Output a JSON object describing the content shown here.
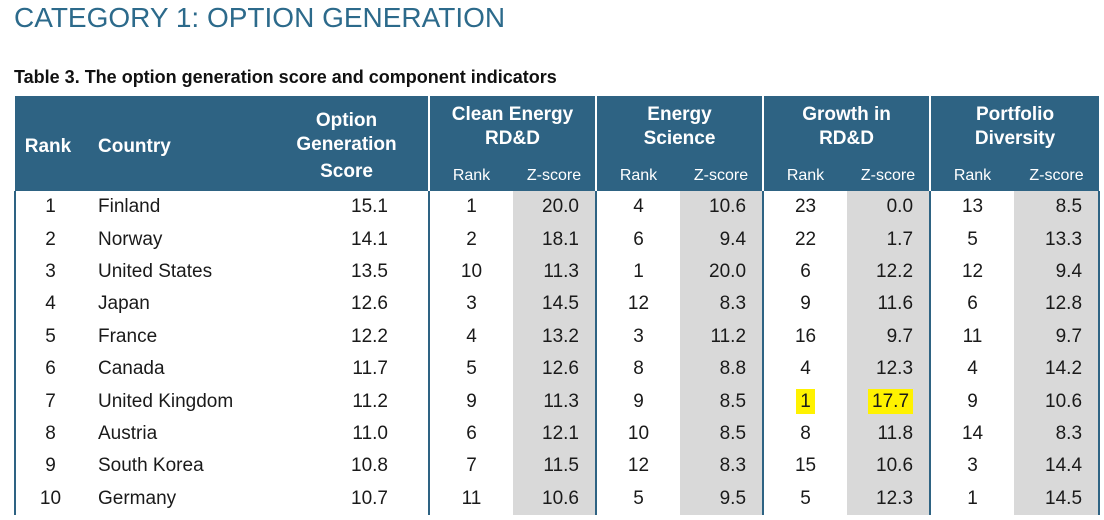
{
  "heading": "CATEGORY 1: OPTION GENERATION",
  "caption": "Table 3. The option generation score and component indicators",
  "columns": {
    "rank": "Rank",
    "country": "Country",
    "score_line1": "Option",
    "score_line2": "Generation",
    "score_line3": "Score",
    "groups": [
      {
        "line1": "Clean Energy",
        "line2": "RD&D"
      },
      {
        "line1": "Energy",
        "line2": "Science"
      },
      {
        "line1": "Growth in",
        "line2": "RD&D"
      },
      {
        "line1": "Portfolio",
        "line2": "Diversity"
      }
    ],
    "sub_rank": "Rank",
    "sub_z": "Z-score"
  },
  "highlight_color": "#fff200",
  "header_color": "#2e6383",
  "rows": [
    {
      "rank": "1",
      "country": "Finland",
      "score": "15.1",
      "ce_rank": "1",
      "ce_z": "20.0",
      "es_rank": "4",
      "es_z": "10.6",
      "gr_rank": "23",
      "gr_z": "0.0",
      "pd_rank": "13",
      "pd_z": "8.5"
    },
    {
      "rank": "2",
      "country": "Norway",
      "score": "14.1",
      "ce_rank": "2",
      "ce_z": "18.1",
      "es_rank": "6",
      "es_z": "9.4",
      "gr_rank": "22",
      "gr_z": "1.7",
      "pd_rank": "5",
      "pd_z": "13.3"
    },
    {
      "rank": "3",
      "country": "United States",
      "score": "13.5",
      "ce_rank": "10",
      "ce_z": "11.3",
      "es_rank": "1",
      "es_z": "20.0",
      "gr_rank": "6",
      "gr_z": "12.2",
      "pd_rank": "12",
      "pd_z": "9.4"
    },
    {
      "rank": "4",
      "country": "Japan",
      "score": "12.6",
      "ce_rank": "3",
      "ce_z": "14.5",
      "es_rank": "12",
      "es_z": "8.3",
      "gr_rank": "9",
      "gr_z": "11.6",
      "pd_rank": "6",
      "pd_z": "12.8"
    },
    {
      "rank": "5",
      "country": "France",
      "score": "12.2",
      "ce_rank": "4",
      "ce_z": "13.2",
      "es_rank": "3",
      "es_z": "11.2",
      "gr_rank": "16",
      "gr_z": "9.7",
      "pd_rank": "11",
      "pd_z": "9.7"
    },
    {
      "rank": "6",
      "country": "Canada",
      "score": "11.7",
      "ce_rank": "5",
      "ce_z": "12.6",
      "es_rank": "8",
      "es_z": "8.8",
      "gr_rank": "4",
      "gr_z": "12.3",
      "pd_rank": "4",
      "pd_z": "14.2"
    },
    {
      "rank": "7",
      "country": "United Kingdom",
      "score": "11.2",
      "ce_rank": "9",
      "ce_z": "11.3",
      "es_rank": "9",
      "es_z": "8.5",
      "gr_rank": "1",
      "gr_z": "17.7",
      "pd_rank": "9",
      "pd_z": "10.6"
    },
    {
      "rank": "8",
      "country": "Austria",
      "score": "11.0",
      "ce_rank": "6",
      "ce_z": "12.1",
      "es_rank": "10",
      "es_z": "8.5",
      "gr_rank": "8",
      "gr_z": "11.8",
      "pd_rank": "14",
      "pd_z": "8.3"
    },
    {
      "rank": "9",
      "country": "South Korea",
      "score": "10.8",
      "ce_rank": "7",
      "ce_z": "11.5",
      "es_rank": "12",
      "es_z": "8.3",
      "gr_rank": "15",
      "gr_z": "10.6",
      "pd_rank": "3",
      "pd_z": "14.4"
    },
    {
      "rank": "10",
      "country": "Germany",
      "score": "10.7",
      "ce_rank": "11",
      "ce_z": "10.6",
      "es_rank": "5",
      "es_z": "9.5",
      "gr_rank": "5",
      "gr_z": "12.3",
      "pd_rank": "1",
      "pd_z": "14.5"
    }
  ]
}
